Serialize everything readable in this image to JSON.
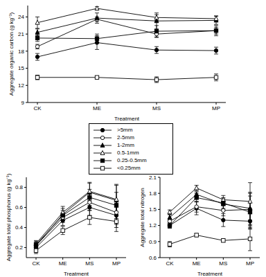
{
  "chart_data": [
    {
      "type": "line",
      "x_label": "Treatment",
      "y_label": "Aggregate organic carbon (g kg⁻¹)",
      "categories": [
        "CK",
        "ME",
        "MS",
        "MP"
      ],
      "ylim": [
        9,
        26
      ],
      "yticks": [
        9,
        12,
        15,
        18,
        21,
        24
      ],
      "grid": false,
      "legend": "bottom",
      "series": [
        {
          "name": ">5mm",
          "color": "#000000",
          "marker": "filled_circle",
          "values": [
            17.0,
            19.5,
            18.2,
            18.1
          ],
          "errors": [
            0.6,
            1.2,
            0.6,
            0.6
          ]
        },
        {
          "name": "2-5mm",
          "color": "#000000",
          "marker": "open_circle",
          "values": [
            18.8,
            23.6,
            21.0,
            21.6
          ],
          "errors": [
            0.4,
            0.4,
            0.6,
            0.6
          ]
        },
        {
          "name": "1-2mm",
          "color": "#000000",
          "marker": "filled_triangle",
          "values": [
            21.3,
            23.8,
            23.3,
            23.4
          ],
          "errors": [
            0.6,
            0.9,
            1.4,
            0.7
          ]
        },
        {
          "name": "0.5-1mm",
          "color": "#000000",
          "marker": "open_triangle",
          "values": [
            23.0,
            25.5,
            23.9,
            23.7
          ],
          "errors": [
            1.0,
            0.3,
            0.5,
            0.5
          ]
        },
        {
          "name": "0.25-0.5mm",
          "color": "#000000",
          "marker": "filled_square",
          "values": [
            20.3,
            20.2,
            21.5,
            21.6
          ],
          "errors": [
            0.6,
            0.8,
            1.0,
            0.9
          ]
        },
        {
          "name": "<0.25mm",
          "color": "#000000",
          "marker": "open_square",
          "values": [
            13.4,
            13.4,
            13.0,
            13.4
          ],
          "errors": [
            0.4,
            0.2,
            0.5,
            0.6
          ]
        }
      ]
    },
    {
      "type": "line",
      "x_label": "Treatment",
      "y_label": "Aggregate total phosphorus (g kg⁻¹)",
      "categories": [
        "CK",
        "ME",
        "MS",
        "MP"
      ],
      "ylim": [
        0.1,
        0.9
      ],
      "yticks": [
        0.2,
        0.4,
        0.6,
        0.8
      ],
      "grid": false,
      "series": [
        {
          "name": ">5mm",
          "color": "#000000",
          "marker": "filled_circle",
          "values": [
            0.2,
            0.47,
            0.6,
            0.52
          ],
          "errors": [
            0.03,
            0.05,
            0.08,
            0.12
          ]
        },
        {
          "name": "2-5mm",
          "color": "#000000",
          "marker": "open_circle",
          "values": [
            0.22,
            0.5,
            0.65,
            0.55
          ],
          "errors": [
            0.03,
            0.05,
            0.08,
            0.12
          ]
        },
        {
          "name": "1-2mm",
          "color": "#000000",
          "marker": "filled_triangle",
          "values": [
            0.22,
            0.53,
            0.75,
            0.67
          ],
          "errors": [
            0.03,
            0.06,
            0.09,
            0.15
          ]
        },
        {
          "name": "0.5-1mm",
          "color": "#000000",
          "marker": "open_triangle",
          "values": [
            0.24,
            0.55,
            0.76,
            0.68
          ],
          "errors": [
            0.03,
            0.06,
            0.09,
            0.15
          ]
        },
        {
          "name": "0.25-0.5mm",
          "color": "#000000",
          "marker": "filled_square",
          "values": [
            0.23,
            0.52,
            0.7,
            0.62
          ],
          "errors": [
            0.03,
            0.05,
            0.08,
            0.13
          ]
        },
        {
          "name": "<0.25mm",
          "color": "#000000",
          "marker": "open_square",
          "values": [
            0.17,
            0.37,
            0.5,
            0.46
          ],
          "errors": [
            0.03,
            0.04,
            0.07,
            0.1
          ]
        }
      ]
    },
    {
      "type": "line",
      "x_label": "Treatment",
      "y_label": "Aggregate total nitrogen",
      "categories": [
        "CK",
        "ME",
        "MS",
        "MP"
      ],
      "ylim": [
        0.6,
        2.1
      ],
      "yticks": [
        0.6,
        0.9,
        1.2,
        1.5,
        1.8,
        2.1
      ],
      "grid": false,
      "series": [
        {
          "name": ">5mm",
          "color": "#000000",
          "marker": "filled_circle",
          "values": [
            1.2,
            1.52,
            1.3,
            1.28
          ],
          "errors": [
            0.05,
            0.12,
            0.12,
            0.15
          ]
        },
        {
          "name": "2-5mm",
          "color": "#000000",
          "marker": "open_circle",
          "values": [
            1.28,
            1.55,
            1.48,
            1.5
          ],
          "errors": [
            0.05,
            0.1,
            0.1,
            0.3
          ]
        },
        {
          "name": "1-2mm",
          "color": "#000000",
          "marker": "filled_triangle",
          "values": [
            1.35,
            1.78,
            1.6,
            1.52
          ],
          "errors": [
            0.05,
            0.05,
            0.1,
            0.3
          ]
        },
        {
          "name": "0.5-1mm",
          "color": "#000000",
          "marker": "open_triangle",
          "values": [
            1.45,
            1.9,
            1.68,
            1.65
          ],
          "errors": [
            0.04,
            0.05,
            0.08,
            0.35
          ]
        },
        {
          "name": "0.25-0.5mm",
          "color": "#000000",
          "marker": "filled_square",
          "values": [
            1.2,
            1.72,
            1.62,
            1.45
          ],
          "errors": [
            0.05,
            0.08,
            0.1,
            0.3
          ]
        },
        {
          "name": "<0.25mm",
          "color": "#000000",
          "marker": "open_square",
          "values": [
            0.85,
            1.02,
            0.92,
            0.95
          ],
          "errors": [
            0.05,
            0.03,
            0.03,
            0.22
          ]
        }
      ]
    }
  ]
}
